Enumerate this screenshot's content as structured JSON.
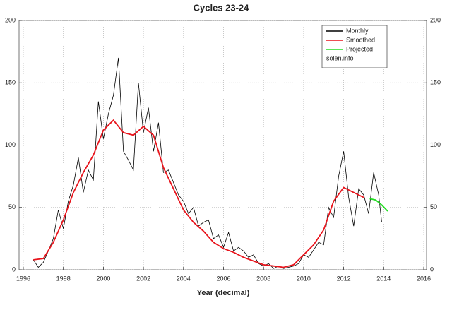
{
  "chart_data": {
    "type": "line",
    "title": "Cycles 23-24",
    "x_label": "Year (decimal)",
    "xlim": [
      1996,
      2016
    ],
    "xticks": [
      1996,
      1998,
      2000,
      2002,
      2004,
      2006,
      2008,
      2010,
      2012,
      2014,
      2016
    ],
    "ylim": [
      0,
      200
    ],
    "yticks": [
      0,
      50,
      100,
      150,
      200
    ],
    "grid": true,
    "legend": "upper right",
    "legend_note": "solen.info",
    "series": [
      {
        "name": "Monthly",
        "color": "#000000",
        "x": [
          1996.5,
          1996.75,
          1997.0,
          1997.25,
          1997.5,
          1997.75,
          1998.0,
          1998.25,
          1998.5,
          1998.75,
          1999.0,
          1999.25,
          1999.5,
          1999.75,
          2000.0,
          2000.25,
          2000.5,
          2000.75,
          2001.0,
          2001.25,
          2001.5,
          2001.75,
          2002.0,
          2002.25,
          2002.5,
          2002.75,
          2003.0,
          2003.25,
          2003.5,
          2003.75,
          2004.0,
          2004.25,
          2004.5,
          2004.75,
          2005.0,
          2005.25,
          2005.5,
          2005.75,
          2006.0,
          2006.25,
          2006.5,
          2006.75,
          2007.0,
          2007.25,
          2007.5,
          2007.75,
          2008.0,
          2008.25,
          2008.5,
          2008.75,
          2009.0,
          2009.25,
          2009.5,
          2009.75,
          2010.0,
          2010.25,
          2010.5,
          2010.75,
          2011.0,
          2011.25,
          2011.5,
          2011.75,
          2012.0,
          2012.25,
          2012.5,
          2012.75,
          2013.0,
          2013.25,
          2013.5,
          2013.75,
          2013.9
        ],
        "values": [
          8,
          2,
          6,
          15,
          25,
          48,
          33,
          55,
          68,
          90,
          62,
          80,
          72,
          135,
          105,
          125,
          140,
          170,
          95,
          88,
          80,
          150,
          110,
          130,
          95,
          118,
          78,
          80,
          70,
          60,
          55,
          45,
          50,
          35,
          38,
          40,
          25,
          28,
          18,
          30,
          15,
          18,
          15,
          10,
          12,
          5,
          3,
          5,
          1,
          3,
          1,
          2,
          3,
          5,
          12,
          10,
          16,
          22,
          20,
          50,
          42,
          75,
          95,
          58,
          35,
          65,
          60,
          45,
          78,
          60,
          38
        ]
      },
      {
        "name": "Smoothed",
        "color": "#e8141c",
        "x": [
          1996.5,
          1997.0,
          1997.5,
          1998.0,
          1998.5,
          1999.0,
          1999.5,
          2000.0,
          2000.5,
          2001.0,
          2001.5,
          2002.0,
          2002.5,
          2003.0,
          2003.5,
          2004.0,
          2004.5,
          2005.0,
          2005.5,
          2006.0,
          2006.5,
          2007.0,
          2007.5,
          2008.0,
          2008.5,
          2009.0,
          2009.5,
          2010.0,
          2010.5,
          2011.0,
          2011.5,
          2012.0,
          2012.5,
          2013.0
        ],
        "values": [
          8,
          9,
          22,
          40,
          62,
          78,
          92,
          112,
          120,
          110,
          108,
          115,
          108,
          82,
          65,
          48,
          38,
          31,
          22,
          17,
          14,
          10,
          7,
          4,
          3,
          2,
          4,
          12,
          20,
          32,
          55,
          66,
          62,
          58
        ]
      },
      {
        "name": "Projected",
        "color": "#22dd22",
        "x": [
          2013.3,
          2013.6,
          2013.9,
          2014.2
        ],
        "values": [
          57,
          56,
          52,
          47
        ]
      }
    ]
  }
}
